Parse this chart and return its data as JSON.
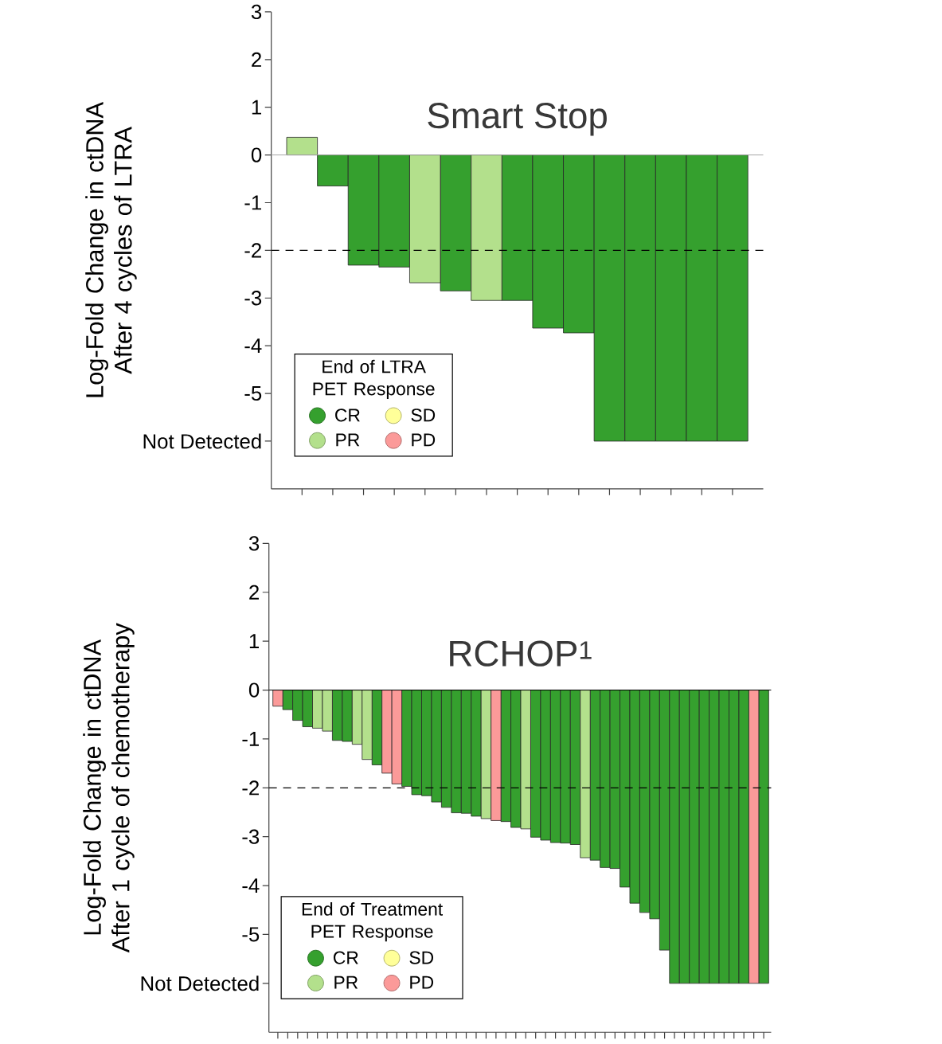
{
  "chart_data": [
    {
      "type": "bar",
      "title": "Smart Stop",
      "ylabel": "Log-Fold Change in ctDNA After 4 cycles of LTRA",
      "legend_title": "End of LTRA PET Response",
      "legend": "bottom left",
      "tick_labels": "y",
      "stacked": true,
      "categories": [
        null,
        null,
        null,
        null,
        null,
        null,
        null,
        null,
        null,
        null,
        null,
        null,
        null,
        null,
        null
      ],
      "series": [
        {
          "name": "CR",
          "color": "#35a02e",
          "values": [
            null,
            -0.65,
            -2.31,
            -2.35,
            null,
            -2.85,
            null,
            -3.05,
            -3.63,
            -3.73,
            -6,
            -6,
            -6,
            -6,
            -6
          ]
        },
        {
          "name": "PR",
          "color": "#b3e08c",
          "values": [
            0.37,
            null,
            null,
            null,
            -2.68,
            null,
            -3.05,
            null,
            null,
            null,
            null,
            null,
            null,
            null,
            null
          ]
        },
        {
          "name": "SD",
          "color": "#ffff99",
          "values": [
            null,
            null,
            null,
            null,
            null,
            null,
            null,
            null,
            null,
            null,
            null,
            null,
            null,
            null,
            null
          ]
        },
        {
          "name": "PD",
          "color": "#fb9a99",
          "values": [
            null,
            null,
            null,
            null,
            null,
            null,
            null,
            null,
            null,
            null,
            null,
            null,
            null,
            null,
            null
          ]
        }
      ],
      "ylim": [
        -7,
        3
      ],
      "yticks": [
        3,
        2,
        1,
        0,
        -1,
        -2,
        -3,
        -4,
        -5,
        {
          "value": -6,
          "label": "Not Detected"
        }
      ],
      "ref_lines": [
        {
          "axis": "y",
          "value": -2,
          "color": "#000000",
          "line_style": "dashed"
        }
      ]
    },
    {
      "type": "bar",
      "title": "RCHOP$^{1}$",
      "ylabel": "Log-Fold Change in ctDNA After 1 cycle of chemotherapy",
      "legend_title": "End of Treatment PET Response",
      "legend": "bottom left",
      "tick_labels": "y",
      "stacked": true,
      "categories": [
        null,
        null,
        null,
        null,
        null,
        null,
        null,
        null,
        null,
        null,
        null,
        null,
        null,
        null,
        null,
        null,
        null,
        null,
        null,
        null,
        null,
        null,
        null,
        null,
        null,
        null,
        null,
        null,
        null,
        null,
        null,
        null,
        null,
        null,
        null,
        null,
        null,
        null,
        null,
        null,
        null,
        null,
        null,
        null,
        null,
        null,
        null,
        null,
        null,
        null
      ],
      "series": [
        {
          "name": "CR",
          "color": "#35a02e",
          "values": [
            null,
            -0.4,
            -0.62,
            -0.75,
            null,
            null,
            -1.03,
            -1.05,
            null,
            null,
            -1.53,
            null,
            null,
            -1.97,
            -2.14,
            -2.16,
            -2.29,
            -2.4,
            -2.51,
            -2.52,
            -2.58,
            null,
            null,
            -2.69,
            -2.81,
            null,
            -3.01,
            -3.07,
            -3.12,
            -3.13,
            -3.16,
            null,
            -3.48,
            -3.63,
            -3.65,
            -4.03,
            -4.36,
            -4.55,
            -4.68,
            -5.32,
            -6,
            -6,
            -6,
            -6,
            -6,
            -6,
            -6,
            -6,
            null,
            -6
          ]
        },
        {
          "name": "PR",
          "color": "#b3e08c",
          "values": [
            null,
            null,
            null,
            null,
            -0.78,
            -0.84,
            null,
            null,
            -1.11,
            -1.42,
            null,
            null,
            null,
            null,
            null,
            null,
            null,
            null,
            null,
            null,
            null,
            -2.63,
            null,
            null,
            null,
            -2.84,
            null,
            null,
            null,
            null,
            null,
            -3.43,
            null,
            null,
            null,
            null,
            null,
            null,
            null,
            null,
            null,
            null,
            null,
            null,
            null,
            null,
            null,
            null,
            null,
            null
          ]
        },
        {
          "name": "SD",
          "color": "#ffff99",
          "values": [
            null,
            null,
            null,
            null,
            null,
            null,
            null,
            null,
            null,
            null,
            null,
            null,
            null,
            null,
            null,
            null,
            null,
            null,
            null,
            null,
            null,
            null,
            null,
            null,
            null,
            null,
            null,
            null,
            null,
            null,
            null,
            null,
            null,
            null,
            null,
            null,
            null,
            null,
            null,
            null,
            null,
            null,
            null,
            null,
            null,
            null,
            null,
            null,
            null,
            null
          ]
        },
        {
          "name": "PD",
          "color": "#fb9a99",
          "values": [
            -0.33,
            null,
            null,
            null,
            null,
            null,
            null,
            null,
            null,
            null,
            null,
            -1.7,
            -1.92,
            null,
            null,
            null,
            null,
            null,
            null,
            null,
            null,
            null,
            -2.67,
            null,
            null,
            null,
            null,
            null,
            null,
            null,
            null,
            null,
            null,
            null,
            null,
            null,
            null,
            null,
            null,
            null,
            null,
            null,
            null,
            null,
            null,
            null,
            null,
            null,
            -6,
            null
          ]
        }
      ],
      "ylim": [
        -7,
        3
      ],
      "yticks": [
        3,
        2,
        1,
        0,
        -1,
        -2,
        -3,
        -4,
        -5,
        {
          "value": -6,
          "label": "Not Detected"
        }
      ],
      "ref_lines": [
        {
          "axis": "y",
          "value": -2,
          "color": "#000000",
          "line_style": "dashed"
        }
      ]
    }
  ]
}
